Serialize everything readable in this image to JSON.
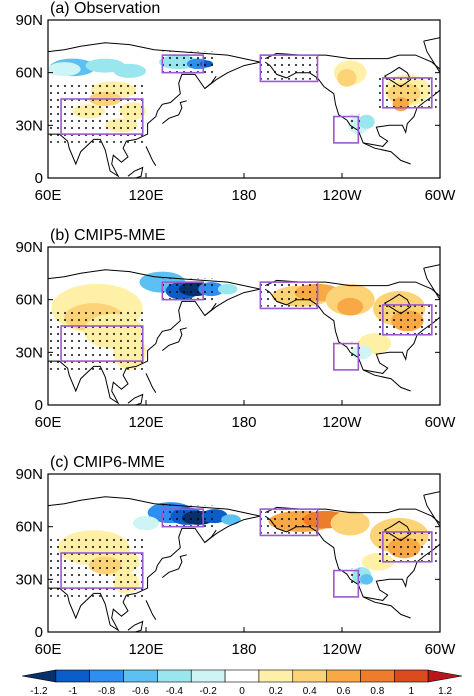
{
  "panels": [
    {
      "id": "a",
      "title": "(a) Observation"
    },
    {
      "id": "b",
      "title": "(b) CMIP5-MME"
    },
    {
      "id": "c",
      "title": "(c) CMIP6-MME"
    }
  ],
  "lat_labels": [
    "90N",
    "60N",
    "30N",
    "0"
  ],
  "lon_labels": [
    "60E",
    "120E",
    "180",
    "120W",
    "60W"
  ],
  "colorbar": {
    "ticks": [
      "-1.2",
      "-1",
      "-0.8",
      "-0.6",
      "-0.4",
      "-0.2",
      "0",
      "0.2",
      "0.4",
      "0.6",
      "0.8",
      "1",
      "1.2"
    ],
    "colors": [
      "#08306b",
      "#0b5ec9",
      "#2f8ff0",
      "#5cc1f2",
      "#9ae6ef",
      "#cff4f5",
      "#ffffff",
      "#fff0a8",
      "#fcd477",
      "#f9a846",
      "#ee7d2b",
      "#dd4a1d",
      "#b9151a"
    ]
  },
  "boxes_color": "#9b59d0"
}
